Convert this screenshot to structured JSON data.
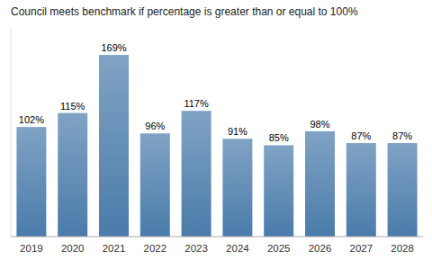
{
  "chart_data": {
    "type": "bar",
    "title": "Council meets benchmark if percentage is greater than or equal to 100%",
    "categories": [
      "2019",
      "2020",
      "2021",
      "2022",
      "2023",
      "2024",
      "2025",
      "2026",
      "2027",
      "2028"
    ],
    "values": [
      102,
      115,
      169,
      96,
      117,
      91,
      85,
      98,
      87,
      87
    ],
    "value_labels": [
      "102%",
      "115%",
      "169%",
      "96%",
      "117%",
      "91%",
      "85%",
      "98%",
      "87%",
      "87%"
    ],
    "data_labels": true,
    "color": "#4a7baa",
    "ylim": [
      0,
      195
    ],
    "tick_labels": "x",
    "grid": false
  }
}
